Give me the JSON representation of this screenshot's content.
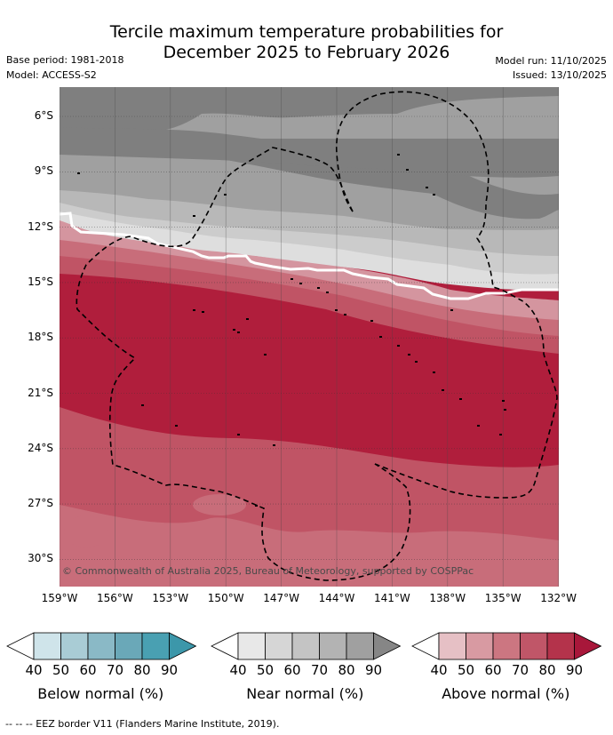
{
  "title": {
    "line1": "Tercile maximum temperature probabilities for",
    "line2": "December 2025 to February 2026"
  },
  "meta": {
    "base_period": "Base period: 1981-2018",
    "model": "Model: ACCESS-S2",
    "model_run": "Model run: 11/10/2025",
    "issued": "Issued: 13/10/2025"
  },
  "map": {
    "copyright": "© Commonwealth of Australia 2025, Bureau of Meteorology, supported by COSPPac",
    "lat_labels": [
      "6°S",
      "9°S",
      "12°S",
      "15°S",
      "18°S",
      "21°S",
      "24°S",
      "27°S",
      "30°S"
    ],
    "lon_labels": [
      "159°W",
      "156°W",
      "153°W",
      "150°W",
      "147°W",
      "144°W",
      "141°W",
      "138°W",
      "135°W",
      "132°W"
    ],
    "colors": {
      "near_90": "#7f7f7f",
      "near_80": "#a0a0a0",
      "near_70": "#b8b8b8",
      "near_60": "#cccccc",
      "near_50": "#dedede",
      "above_50": "#d4959f",
      "above_60": "#c86d7a",
      "above_70": "#c05465",
      "above_80": "#b01e3c"
    }
  },
  "colorbars": [
    {
      "label": "Below normal (%)",
      "ticks": [
        "40",
        "50",
        "60",
        "70",
        "80",
        "90"
      ],
      "colors": [
        "#cfe4ea",
        "#a9ccd5",
        "#8ab9c6",
        "#6aa8b8",
        "#49a0b2"
      ],
      "start": "#ffffff",
      "end": "#3c97aa"
    },
    {
      "label": "Near normal (%)",
      "ticks": [
        "40",
        "50",
        "60",
        "70",
        "80",
        "90"
      ],
      "colors": [
        "#e8e8e8",
        "#d6d6d6",
        "#c4c4c4",
        "#b3b3b3",
        "#a0a0a0"
      ],
      "start": "#ffffff",
      "end": "#868686"
    },
    {
      "label": "Above normal (%)",
      "ticks": [
        "40",
        "50",
        "60",
        "70",
        "80",
        "90"
      ],
      "colors": [
        "#e6c0c5",
        "#d89aa2",
        "#cc7681",
        "#c05668",
        "#b4334b"
      ],
      "start": "#ffffff",
      "end": "#a8173a"
    }
  ],
  "footer": "-- -- -- EEZ border V11 (Flanders Marine Institute, 2019)."
}
